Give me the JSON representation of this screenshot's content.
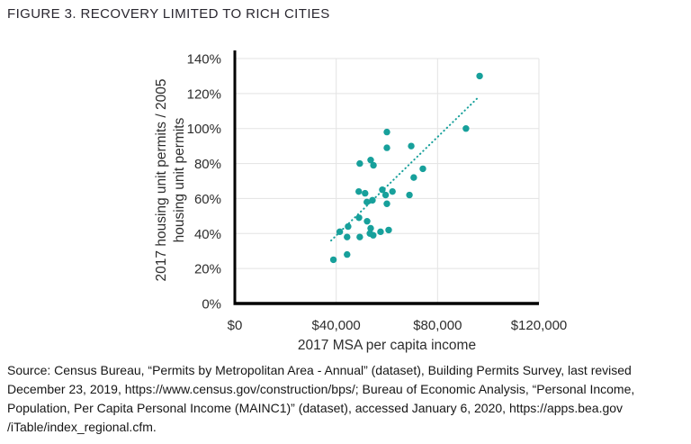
{
  "title": "FIGURE 3. RECOVERY LIMITED TO RICH CITIES",
  "chart_data": {
    "type": "scatter",
    "title": "FIGURE 3. RECOVERY LIMITED TO RICH CITIES",
    "xlabel": "2017 MSA per capita income",
    "ylabel_lines": [
      "2017 housing unit permits / 2005",
      "housing unit permits"
    ],
    "xlim": [
      0,
      120000
    ],
    "ylim": [
      0,
      140
    ],
    "xticks": [
      0,
      40000,
      80000,
      120000
    ],
    "xtick_labels": [
      "$0",
      "$40,000",
      "$80,000",
      "$120,000"
    ],
    "yticks": [
      0,
      20,
      40,
      60,
      80,
      100,
      120,
      140
    ],
    "ytick_labels": [
      "0%",
      "20%",
      "40%",
      "60%",
      "80%",
      "100%",
      "120%",
      "140%"
    ],
    "grid": true,
    "legend": "none",
    "point_color": "#17A09B",
    "grid_color": "#E3E3E3",
    "axis_color": "#000000",
    "points": [
      [
        38900,
        25
      ],
      [
        44300,
        28
      ],
      [
        41400,
        41
      ],
      [
        44300,
        38
      ],
      [
        44700,
        44
      ],
      [
        49300,
        38
      ],
      [
        49000,
        49
      ],
      [
        52200,
        47
      ],
      [
        53600,
        43
      ],
      [
        53300,
        40
      ],
      [
        54600,
        39
      ],
      [
        57500,
        41
      ],
      [
        60700,
        42
      ],
      [
        48900,
        64
      ],
      [
        51400,
        63
      ],
      [
        52100,
        58
      ],
      [
        54300,
        59
      ],
      [
        58200,
        65
      ],
      [
        59500,
        62
      ],
      [
        60000,
        57
      ],
      [
        62200,
        64
      ],
      [
        68900,
        62
      ],
      [
        49300,
        80
      ],
      [
        53600,
        82
      ],
      [
        54700,
        79
      ],
      [
        60000,
        98
      ],
      [
        60000,
        89
      ],
      [
        69600,
        90
      ],
      [
        70600,
        72
      ],
      [
        74200,
        77
      ],
      [
        91200,
        100
      ],
      [
        96600,
        130
      ]
    ],
    "trendline": {
      "style": "dotted",
      "x1": 38000,
      "y1": 36,
      "x2": 96200,
      "y2": 118
    }
  },
  "source": {
    "lines": [
      "Source: Census Bureau, “Permits by Metropolitan Area - Annual” (dataset), Building Permits Survey, last revised",
      "December 23, 2019, https://www.census.gov/construction/bps/; Bureau of Economic Analysis, “Personal Income,",
      "Population, Per Capita Personal Income (MAINC1)” (dataset), accessed January 6, 2020, https://apps.bea.gov",
      "/iTable/index_regional.cfm."
    ]
  }
}
